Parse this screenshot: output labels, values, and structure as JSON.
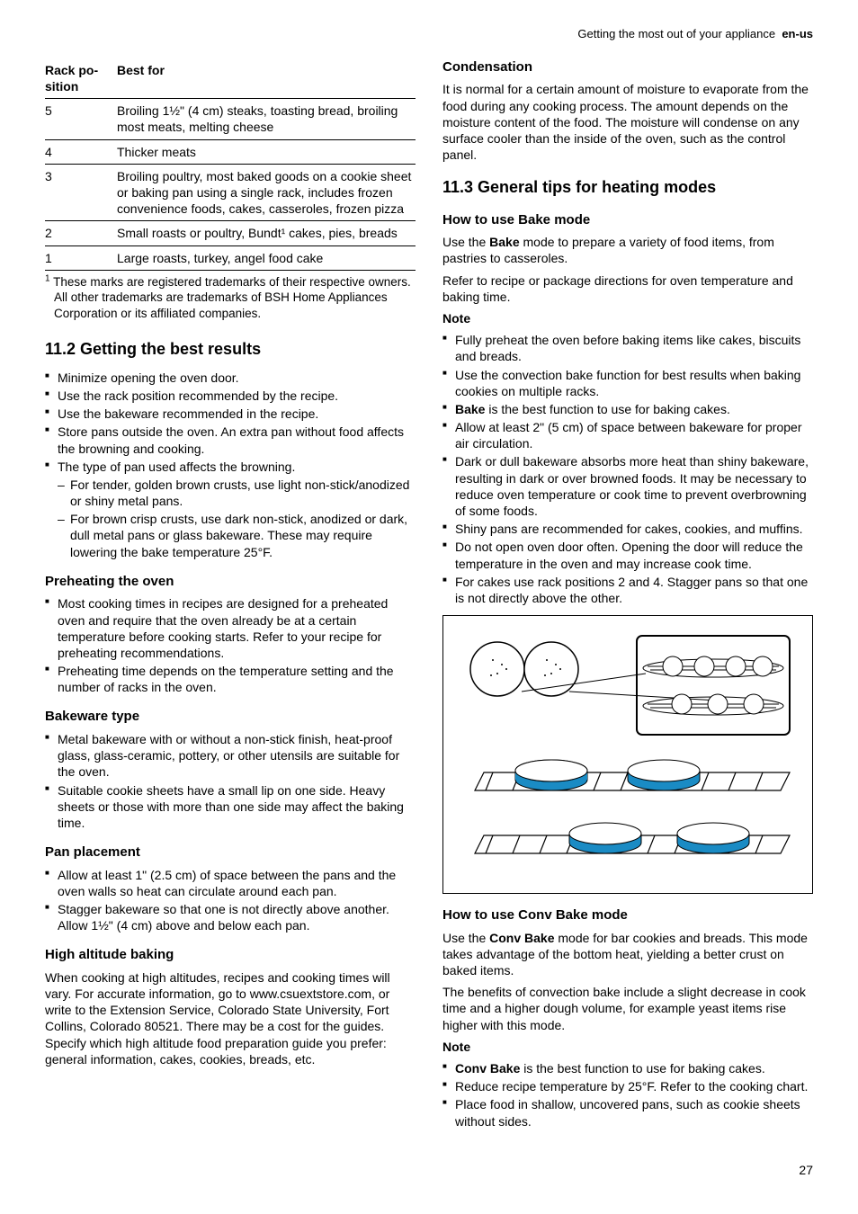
{
  "header": {
    "text": "Getting the most out of your appliance",
    "lang": "en-us"
  },
  "table": {
    "h1": "Rack po-\nsition",
    "h2": "Best for",
    "rows": [
      {
        "p": "5",
        "b": "Broiling 1½\" (4 cm) steaks, toasting bread, broiling most meats, melting cheese"
      },
      {
        "p": "4",
        "b": "Thicker meats"
      },
      {
        "p": "3",
        "b": "Broiling poultry, most baked goods on a cookie sheet or baking pan using a single rack, includes frozen convenience foods, cakes, casseroles, frozen pizza"
      },
      {
        "p": "2",
        "b": "Small roasts or poultry, Bundt¹ cakes, pies, breads"
      },
      {
        "p": "1",
        "b": "Large roasts, turkey, angel food cake"
      }
    ],
    "footnote": "These marks are registered trademarks of their respective owners. All other trademarks are trademarks of BSH Home Appliances Corporation or its affiliated companies."
  },
  "s112": {
    "title": "11.2 Getting the best results",
    "items": [
      "Minimize opening the oven door.",
      "Use the rack position recommended by the recipe.",
      "Use the bakeware recommended in the recipe.",
      "Store pans outside the oven. An extra pan without food affects the browning and cooking.",
      "The type of pan used affects the browning."
    ],
    "sub": [
      "For tender, golden brown crusts, use light non-stick/anodized or shiny metal pans.",
      "For brown crisp crusts, use dark non-stick, anodized or dark, dull metal pans or glass bakeware. These may require lowering the bake temperature 25°F."
    ]
  },
  "preheat": {
    "title": "Preheating the oven",
    "items": [
      "Most cooking times in recipes are designed for a preheated oven and require that the oven already be at a certain temperature before cooking starts. Refer to your recipe for preheating recommendations.",
      "Preheating time depends on the temperature setting and the number of racks in the oven."
    ]
  },
  "bakeware": {
    "title": "Bakeware type",
    "items": [
      "Metal bakeware with or without a non-stick finish, heat-proof glass, glass-ceramic, pottery, or other utensils are suitable for the oven.",
      "Suitable cookie sheets have a small lip on one side. Heavy sheets or those with more than one side may affect the baking time."
    ]
  },
  "panplace": {
    "title": "Pan placement",
    "items": [
      "Allow at least 1\" (2.5 cm) of space between the pans and the oven walls so heat can circulate around each pan.",
      "Stagger bakeware so that one is not directly above another. Allow 1½\" (4 cm) above and below each pan."
    ]
  },
  "altitude": {
    "title": "High altitude baking",
    "p1": "When cooking at high altitudes, recipes and cooking times will vary. For accurate information, go to www.csuextstore.com, or write to the Extension Service, Colorado State University, Fort Collins, Colorado 80521. There may be a cost for the guides. Specify which high altitude food preparation guide you prefer: general information, cakes, cookies, breads, etc."
  },
  "condensation": {
    "title": "Condensation",
    "p1": "It is normal for a certain amount of moisture to evaporate from the food during any cooking process. The amount depends on the moisture content of the food. The moisture will condense on any surface cooler than the inside of the oven, such as the control panel."
  },
  "s113": {
    "title": "11.3 General tips for heating modes"
  },
  "bake": {
    "title": "How to use Bake mode",
    "p1a": "Use the ",
    "p1b": "Bake",
    "p1c": " mode to prepare a variety of food items, from pastries to casseroles.",
    "p2": "Refer to recipe or package directions for oven temperature and baking time.",
    "note": "Note",
    "items_pre": [
      "Fully preheat the oven before baking items like cakes, biscuits and breads.",
      "Use the convection bake function for best results when baking cookies on multiple racks."
    ],
    "item_bake_a": "Bake",
    "item_bake_b": " is the best function to use for baking cakes.",
    "items_post": [
      "Allow at least 2\" (5 cm) of space between bakeware for proper air circulation.",
      "Dark or dull bakeware absorbs more heat than shiny bakeware, resulting in dark or over browned foods. It may be necessary to reduce oven temperature or cook time to prevent overbrowning of some foods.",
      "Shiny pans are recommended for cakes, cookies, and muffins.",
      "Do not open oven door often. Opening the door will reduce the temperature in the oven and may increase cook time.",
      "For cakes use rack positions 2 and 4. Stagger pans so that one is not directly above the other."
    ]
  },
  "figure": {
    "stroke": "#000000",
    "blue": "#1a8bc4",
    "bg": "#ffffff"
  },
  "convbake": {
    "title": "How to use Conv Bake mode",
    "p1a": "Use the ",
    "p1b": "Conv Bake",
    "p1c": " mode for bar cookies and breads. This mode takes advantage of the bottom heat, yielding a better crust on baked items.",
    "p2": "The benefits of convection bake include a slight decrease in cook time and a higher dough volume, for example yeast items rise higher with this mode.",
    "note": "Note",
    "item1a": "Conv Bake",
    "item1b": " is the best function to use for baking cakes.",
    "items": [
      "Reduce recipe temperature by 25°F. Refer to the cooking chart.",
      "Place food in shallow, uncovered pans, such as cookie sheets without sides."
    ]
  },
  "pagenum": "27"
}
